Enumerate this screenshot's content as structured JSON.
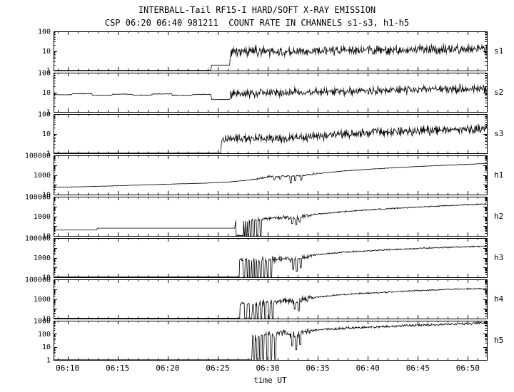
{
  "chart_data": {
    "type": "line",
    "title": "INTERBALL-Tail RF15-I HARD/SOFT X-RAY EMISSION",
    "subtitle": "CSP 06:20 06:40 981211  COUNT RATE IN CHANNELS s1-s3, h1-h5",
    "xlabel": "time UT",
    "x_unit": "minutes after 06:00 UT",
    "yscale": "log",
    "grid": false,
    "xlim": [
      8.6,
      51.9
    ],
    "xticks": [
      {
        "t": 10,
        "label": "06:10"
      },
      {
        "t": 15,
        "label": "06:15"
      },
      {
        "t": 20,
        "label": "06:20"
      },
      {
        "t": 25,
        "label": "06:25"
      },
      {
        "t": 30,
        "label": "06:30"
      },
      {
        "t": 35,
        "label": "06:35"
      },
      {
        "t": 40,
        "label": "06:40"
      },
      {
        "t": 45,
        "label": "06:45"
      },
      {
        "t": 50,
        "label": "06:50"
      }
    ],
    "panels": [
      {
        "label": "s1",
        "ylim": [
          1,
          100
        ],
        "yticks": [
          1,
          10,
          100
        ],
        "keypoints": [
          [
            8.6,
            1.02
          ],
          [
            24.3,
            1.02
          ],
          [
            24.4,
            1.9
          ],
          [
            26.2,
            1.9
          ],
          [
            26.3,
            9
          ],
          [
            28,
            10
          ],
          [
            31,
            9
          ],
          [
            33,
            8.5
          ],
          [
            36,
            10
          ],
          [
            40,
            11
          ],
          [
            44,
            11.5
          ],
          [
            48,
            12
          ],
          [
            52,
            13
          ]
        ],
        "noise": [
          [
            8.6,
            0
          ],
          [
            26.2,
            0
          ],
          [
            26.3,
            0.16
          ],
          [
            52,
            0.16
          ]
        ],
        "spikes": []
      },
      {
        "label": "s2",
        "ylim": [
          1,
          100
        ],
        "yticks": [
          1,
          10,
          100
        ],
        "keypoints": [
          [
            8.6,
            7.5
          ],
          [
            10.4,
            7.5
          ],
          [
            10.5,
            8.5
          ],
          [
            12.4,
            8.5
          ],
          [
            12.5,
            7
          ],
          [
            14.4,
            7
          ],
          [
            14.5,
            8
          ],
          [
            16.4,
            8
          ],
          [
            16.5,
            7.2
          ],
          [
            18.4,
            7.2
          ],
          [
            18.5,
            8.3
          ],
          [
            20.4,
            8.3
          ],
          [
            20.5,
            7
          ],
          [
            22.4,
            7
          ],
          [
            22.5,
            7.8
          ],
          [
            24.3,
            7.8
          ],
          [
            24.4,
            4.3
          ],
          [
            26.2,
            4.3
          ],
          [
            26.3,
            8
          ],
          [
            30,
            9
          ],
          [
            34,
            10
          ],
          [
            38,
            11
          ],
          [
            42,
            12.5
          ],
          [
            46,
            14
          ],
          [
            52,
            15
          ]
        ],
        "noise": [
          [
            8.6,
            0.012
          ],
          [
            26.2,
            0.012
          ],
          [
            26.3,
            0.14
          ],
          [
            52,
            0.14
          ]
        ],
        "spikes": []
      },
      {
        "label": "s3",
        "ylim": [
          1,
          100
        ],
        "yticks": [
          1,
          10,
          100
        ],
        "keypoints": [
          [
            8.6,
            1.02
          ],
          [
            25.3,
            1.02
          ],
          [
            25.4,
            5
          ],
          [
            28,
            6
          ],
          [
            31,
            5.5
          ],
          [
            34,
            7
          ],
          [
            37,
            9
          ],
          [
            40,
            11
          ],
          [
            44,
            13
          ],
          [
            48,
            16
          ],
          [
            52,
            18
          ]
        ],
        "noise": [
          [
            8.6,
            0
          ],
          [
            25.3,
            0
          ],
          [
            25.4,
            0.15
          ],
          [
            52,
            0.15
          ]
        ],
        "spikes": []
      },
      {
        "label": "h1",
        "ylim": [
          10,
          100000
        ],
        "yticks": [
          10,
          1000,
          100000
        ],
        "keypoints": [
          [
            8.6,
            55
          ],
          [
            12,
            65
          ],
          [
            16,
            85
          ],
          [
            20,
            115
          ],
          [
            24,
            150
          ],
          [
            26,
            190
          ],
          [
            27.5,
            260
          ],
          [
            29,
            400
          ],
          [
            29.8,
            600
          ],
          [
            30.4,
            750
          ],
          [
            30.9,
            650
          ],
          [
            31.4,
            900
          ],
          [
            31.9,
            750
          ],
          [
            32.4,
            850
          ],
          [
            33,
            950
          ],
          [
            33.6,
            800
          ],
          [
            34.2,
            1100
          ],
          [
            35,
            1400
          ],
          [
            36.5,
            2000
          ],
          [
            38,
            2800
          ],
          [
            40,
            3800
          ],
          [
            42,
            5000
          ],
          [
            44,
            6500
          ],
          [
            46,
            8200
          ],
          [
            48,
            10000
          ],
          [
            50,
            12500
          ],
          [
            52,
            15000
          ]
        ],
        "noise": [
          [
            8.6,
            0.012
          ],
          [
            28.5,
            0.02
          ],
          [
            29,
            0.07
          ],
          [
            34.5,
            0.07
          ],
          [
            35.5,
            0.02
          ],
          [
            52,
            0.02
          ]
        ],
        "spikes": [
          [
            30.65,
            320
          ],
          [
            31.25,
            380
          ],
          [
            32.3,
            150
          ],
          [
            32.75,
            260
          ],
          [
            33.35,
            300
          ]
        ]
      },
      {
        "label": "h2",
        "ylim": [
          10,
          100000
        ],
        "yticks": [
          10,
          1000,
          100000
        ],
        "keypoints": [
          [
            8.6,
            40
          ],
          [
            12.9,
            40
          ],
          [
            13,
            62
          ],
          [
            26.7,
            62
          ],
          [
            26.8,
            280
          ],
          [
            28,
            380
          ],
          [
            29.5,
            500
          ],
          [
            30.5,
            650
          ],
          [
            31.5,
            800
          ],
          [
            32.2,
            700
          ],
          [
            32.8,
            600
          ],
          [
            33.4,
            900
          ],
          [
            34.2,
            1300
          ],
          [
            35.5,
            1900
          ],
          [
            37,
            2600
          ],
          [
            39,
            3800
          ],
          [
            41,
            5200
          ],
          [
            43,
            6800
          ],
          [
            45,
            8800
          ],
          [
            47,
            11000
          ],
          [
            49,
            14000
          ],
          [
            52,
            18000
          ]
        ],
        "noise": [
          [
            8.6,
            0
          ],
          [
            26.7,
            0
          ],
          [
            26.8,
            0.12
          ],
          [
            34,
            0.12
          ],
          [
            35,
            0.04
          ],
          [
            52,
            0.04
          ]
        ],
        "spikes": [
          [
            26.9,
            11
          ],
          [
            27.05,
            11
          ],
          [
            27.2,
            11
          ],
          [
            27.35,
            11
          ],
          [
            27.5,
            11
          ],
          [
            27.68,
            11
          ],
          [
            27.85,
            11
          ],
          [
            28.05,
            11
          ],
          [
            28.3,
            11
          ],
          [
            28.6,
            11
          ],
          [
            28.95,
            11
          ],
          [
            29.3,
            11
          ],
          [
            32.45,
            180
          ],
          [
            32.85,
            140
          ],
          [
            33.2,
            260
          ]
        ]
      },
      {
        "label": "h3",
        "ylim": [
          10,
          100000
        ],
        "yticks": [
          10,
          1000,
          100000
        ],
        "keypoints": [
          [
            8.6,
            11
          ],
          [
            28.3,
            11
          ],
          [
            28.4,
            350
          ],
          [
            29.5,
            550
          ],
          [
            30.5,
            700
          ],
          [
            31.5,
            850
          ],
          [
            32.3,
            700
          ],
          [
            33,
            600
          ],
          [
            33.6,
            1100
          ],
          [
            34.3,
            1600
          ],
          [
            35.5,
            2300
          ],
          [
            37,
            3200
          ],
          [
            39,
            4300
          ],
          [
            41,
            5600
          ],
          [
            43,
            7000
          ],
          [
            45,
            8800
          ],
          [
            47,
            10500
          ],
          [
            49,
            12500
          ],
          [
            52,
            15000
          ]
        ],
        "noise": [
          [
            8.6,
            0
          ],
          [
            28.3,
            0
          ],
          [
            28.4,
            0.2
          ],
          [
            34,
            0.2
          ],
          [
            35,
            0.05
          ],
          [
            52,
            0.05
          ]
        ],
        "spikes": [
          [
            27.25,
            600
          ],
          [
            27.32,
            850
          ],
          [
            27.4,
            500
          ],
          [
            27.48,
            750
          ],
          [
            27.8,
            650
          ],
          [
            27.88,
            800
          ],
          [
            28.1,
            550
          ],
          [
            28.5,
            11
          ],
          [
            28.75,
            11
          ],
          [
            29,
            11
          ],
          [
            29.3,
            11
          ],
          [
            29.65,
            11
          ],
          [
            30,
            11
          ],
          [
            30.35,
            11
          ],
          [
            32.55,
            60
          ],
          [
            32.9,
            40
          ],
          [
            33.3,
            90
          ]
        ]
      },
      {
        "label": "h4",
        "ylim": [
          10,
          100000
        ],
        "yticks": [
          10,
          1000,
          100000
        ],
        "keypoints": [
          [
            8.6,
            11
          ],
          [
            28.4,
            11
          ],
          [
            28.5,
            260
          ],
          [
            29.5,
            420
          ],
          [
            30.5,
            560
          ],
          [
            31.5,
            700
          ],
          [
            32.3,
            620
          ],
          [
            33,
            520
          ],
          [
            33.6,
            900
          ],
          [
            34.3,
            1250
          ],
          [
            35.5,
            1800
          ],
          [
            37,
            2500
          ],
          [
            39,
            3400
          ],
          [
            41,
            4400
          ],
          [
            43,
            5600
          ],
          [
            45,
            7000
          ],
          [
            47,
            8600
          ],
          [
            49,
            10200
          ],
          [
            52,
            12000
          ]
        ],
        "noise": [
          [
            8.6,
            0
          ],
          [
            28.4,
            0
          ],
          [
            28.5,
            0.2
          ],
          [
            34,
            0.2
          ],
          [
            35,
            0.05
          ],
          [
            52,
            0.05
          ]
        ],
        "spikes": [
          [
            27.3,
            300
          ],
          [
            27.36,
            420
          ],
          [
            27.42,
            380
          ],
          [
            27.48,
            450
          ],
          [
            27.54,
            350
          ],
          [
            27.6,
            400
          ],
          [
            28,
            300
          ],
          [
            28.12,
            360
          ],
          [
            28.7,
            11
          ],
          [
            29,
            11
          ],
          [
            29.35,
            11
          ],
          [
            29.75,
            11
          ],
          [
            30.15,
            11
          ],
          [
            30.5,
            11
          ],
          [
            32.7,
            90
          ],
          [
            33.1,
            60
          ]
        ]
      },
      {
        "label": "h5",
        "ylim": [
          1,
          1000
        ],
        "yticks": [
          1,
          10,
          100,
          1000
        ],
        "keypoints": [
          [
            8.6,
            1.03
          ],
          [
            28.4,
            1.03
          ],
          [
            28.5,
            55
          ],
          [
            29.5,
            75
          ],
          [
            30.5,
            95
          ],
          [
            31.5,
            115
          ],
          [
            32.3,
            100
          ],
          [
            33,
            85
          ],
          [
            33.6,
            140
          ],
          [
            34.3,
            170
          ],
          [
            35.5,
            210
          ],
          [
            37,
            250
          ],
          [
            39,
            300
          ],
          [
            41,
            350
          ],
          [
            43,
            400
          ],
          [
            45,
            460
          ],
          [
            47,
            520
          ],
          [
            49,
            580
          ],
          [
            52,
            680
          ]
        ],
        "noise": [
          [
            8.6,
            0
          ],
          [
            28.4,
            0
          ],
          [
            28.5,
            0.16
          ],
          [
            34,
            0.16
          ],
          [
            35,
            0.06
          ],
          [
            52,
            0.06
          ]
        ],
        "spikes": [
          [
            28.65,
            1.1
          ],
          [
            28.95,
            1.1
          ],
          [
            29.25,
            1.1
          ],
          [
            29.55,
            1.1
          ],
          [
            29.95,
            1.1
          ],
          [
            30.35,
            1.1
          ],
          [
            30.75,
            1.1
          ],
          [
            32.45,
            12
          ],
          [
            32.85,
            6
          ],
          [
            33.25,
            15
          ]
        ]
      }
    ]
  }
}
